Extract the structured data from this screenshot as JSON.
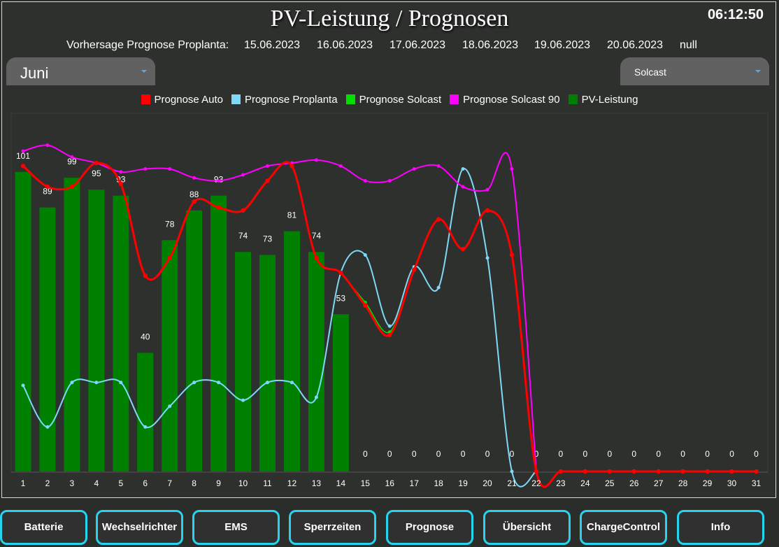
{
  "header": {
    "title": "PV-Leistung / Prognosen",
    "clock": "06:12:50"
  },
  "forecast": {
    "label": "Vorhersage Prognose Proplanta:",
    "dates": [
      "15.06.2023",
      "16.06.2023",
      "17.06.2023",
      "18.06.2023",
      "19.06.2023",
      "20.06.2023",
      "null"
    ]
  },
  "month_select": {
    "value": "Juni",
    "icon": "chevron-down-icon"
  },
  "source_select": {
    "value": "Solcast",
    "icon": "chevron-down-icon"
  },
  "legend": [
    {
      "label": "Prognose Auto",
      "color": "#ff0000"
    },
    {
      "label": "Prognose Proplanta",
      "color": "#7fd8f7"
    },
    {
      "label": "Prognose Solcast",
      "color": "#00e000"
    },
    {
      "label": "Prognose Solcast 90",
      "color": "#ff00ff"
    },
    {
      "label": "PV-Leistung",
      "color": "#008000"
    }
  ],
  "chart_data": {
    "type": "bar",
    "x": [
      1,
      2,
      3,
      4,
      5,
      6,
      7,
      8,
      9,
      10,
      11,
      12,
      13,
      14,
      15,
      16,
      17,
      18,
      19,
      20,
      21,
      22,
      23,
      24,
      25,
      26,
      27,
      28,
      29,
      30,
      31
    ],
    "ylim": [
      0,
      125
    ],
    "grid": false,
    "legend_position": "top",
    "bars": {
      "name": "PV-Leistung",
      "color": "#008000",
      "values": [
        101,
        89,
        99,
        95,
        93,
        40,
        78,
        88,
        93,
        74,
        73,
        81,
        74,
        53,
        0,
        0,
        0,
        0,
        0,
        0,
        0,
        0,
        0,
        0,
        0,
        0,
        0,
        0,
        0,
        0,
        0
      ],
      "labels": [
        "101",
        "89",
        "99",
        "95",
        "93",
        "40",
        "78",
        "88",
        "93",
        "74",
        "73",
        "81",
        "74",
        "53",
        "0",
        "0",
        "0",
        "0",
        "0",
        "0",
        "0",
        "0",
        "0",
        "0",
        "0",
        "0",
        "0",
        "0",
        "0",
        "0",
        "0"
      ]
    },
    "lines": [
      {
        "name": "Prognose Proplanta",
        "color": "#7fd8f7",
        "values": [
          29,
          15,
          30,
          30,
          30,
          15,
          22,
          30,
          30,
          24,
          30,
          30,
          25,
          67,
          73,
          49,
          69,
          62,
          102,
          72,
          0,
          0,
          null,
          null,
          null,
          null,
          null,
          null,
          null,
          null,
          null
        ]
      },
      {
        "name": "Prognose Solcast",
        "color": "#00e000",
        "values": [
          null,
          null,
          null,
          null,
          null,
          null,
          null,
          null,
          null,
          null,
          null,
          null,
          null,
          67,
          57,
          47,
          68,
          85,
          75,
          88,
          73,
          0,
          0,
          0,
          0,
          0,
          0,
          0,
          0,
          0,
          0
        ]
      },
      {
        "name": "Prognose Solcast 90",
        "color": "#ff00ff",
        "values": [
          108,
          110,
          106,
          104,
          101,
          102,
          102,
          99,
          98,
          100,
          103,
          104,
          105,
          103,
          98,
          98,
          102,
          103,
          96,
          95,
          102,
          0,
          null,
          null,
          null,
          null,
          null,
          null,
          null,
          null,
          null
        ]
      },
      {
        "name": "Prognose Auto",
        "color": "#ff0000",
        "values": [
          103,
          96,
          96,
          104,
          97,
          66,
          72,
          91,
          89,
          88,
          98,
          103,
          72,
          67,
          56,
          46,
          68,
          85,
          75,
          88,
          73,
          0,
          0,
          0,
          0,
          0,
          0,
          0,
          0,
          0,
          0
        ]
      }
    ]
  },
  "nav": [
    {
      "label": "Batterie",
      "name": "nav-button-batterie"
    },
    {
      "label": "Wechselrichter",
      "name": "nav-button-wechselrichter"
    },
    {
      "label": "EMS",
      "name": "nav-button-ems"
    },
    {
      "label": "Sperrzeiten",
      "name": "nav-button-sperrzeiten"
    },
    {
      "label": "Prognose",
      "name": "nav-button-prognose"
    },
    {
      "label": "Übersicht",
      "name": "nav-button-uebersicht"
    },
    {
      "label": "ChargeControl",
      "name": "nav-button-chargecontrol"
    },
    {
      "label": "Info",
      "name": "nav-button-info"
    }
  ]
}
